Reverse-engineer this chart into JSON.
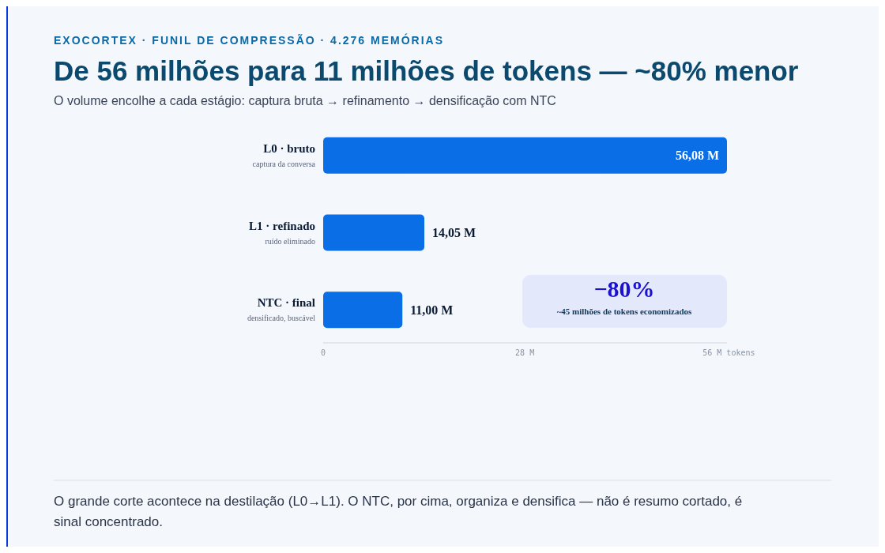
{
  "chart_data": {
    "type": "bar",
    "orientation": "horizontal",
    "title": "De 56 milhões para 11 milhões de tokens — ~80% menor",
    "subtitle": "EXOCORTEX · FUNIL DE COMPRESSÃO · 4.276 MEMÓRIAS",
    "categories": [
      "L0 · bruto",
      "L1 · refinado",
      "NTC · final"
    ],
    "values": [
      56.08,
      14.05,
      11.0
    ],
    "value_labels": [
      "56,08 M",
      "14,05 M",
      "11,00 M"
    ],
    "color": "#0a6ee6",
    "xlim": [
      0,
      56.08
    ],
    "xticks": [
      {
        "value": 0,
        "label": "0"
      },
      {
        "value": 28,
        "label": "28 M"
      },
      {
        "value": 56,
        "label": "56 M tokens"
      }
    ],
    "annotations": [
      "O volume encolhe a cada estágio: captura bruta → refinamento → densificação com NTC",
      "captura da conversa",
      "ruído eliminado",
      "densificado, buscável",
      "−80%",
      "~45 milhões de tokens economizados",
      "O grande corte acontece na destilação (L0→L1). O NTC, por cima, organiza e densifica — não é resumo cortado, é sinal concentrado."
    ]
  }
}
